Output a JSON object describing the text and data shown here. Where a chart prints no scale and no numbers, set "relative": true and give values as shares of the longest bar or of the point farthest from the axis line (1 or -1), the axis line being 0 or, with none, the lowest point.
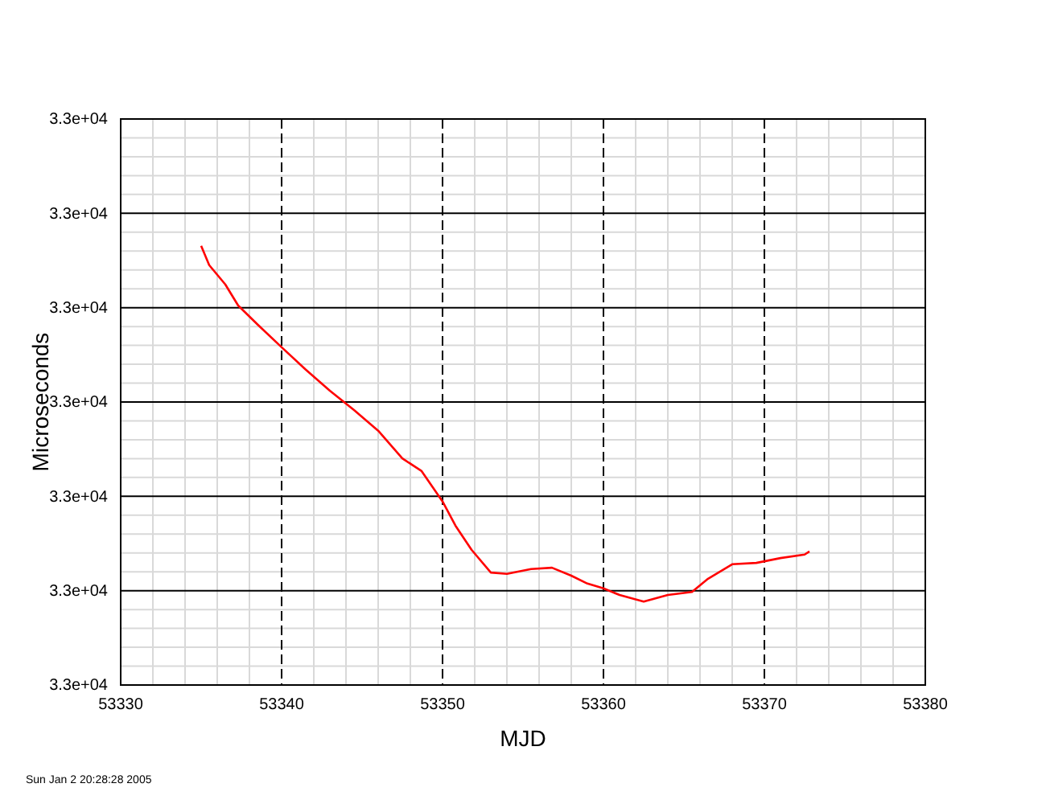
{
  "chart_data": {
    "type": "line",
    "xlabel": "MJD",
    "ylabel": "Microseconds",
    "relative": true,
    "grid": true,
    "marker": "none",
    "line_style": "solid",
    "annotations": [
      "3.3e+04",
      "3.3e+04",
      "3.3e+04",
      "3.3e+04",
      "3.3e+04",
      "3.3e+04",
      "3.3e+04",
      "Sun Jan  2 20:28:28 2005"
    ],
    "xlim": [
      53330,
      53380
    ],
    "xticks": [
      53330,
      {
        "value": 53332,
        "label": null
      },
      {
        "value": 53334,
        "label": null
      },
      {
        "value": 53336,
        "label": null
      },
      {
        "value": 53338,
        "label": null
      },
      53340,
      {
        "value": 53342,
        "label": null
      },
      {
        "value": 53344,
        "label": null
      },
      {
        "value": 53346,
        "label": null
      },
      {
        "value": 53348,
        "label": null
      },
      53350,
      {
        "value": 53352,
        "label": null
      },
      {
        "value": 53354,
        "label": null
      },
      {
        "value": 53356,
        "label": null
      },
      {
        "value": 53358,
        "label": null
      },
      53360,
      {
        "value": 53362,
        "label": null
      },
      {
        "value": 53364,
        "label": null
      },
      {
        "value": 53366,
        "label": null
      },
      {
        "value": 53368,
        "label": null
      },
      53370,
      {
        "value": 53372,
        "label": null
      },
      {
        "value": 53374,
        "label": null
      },
      {
        "value": 53376,
        "label": null
      },
      {
        "value": 53378,
        "label": null
      },
      53380
    ],
    "x": [
      53335,
      53335.5,
      53336.5,
      53337.3,
      53338.5,
      53340,
      53341.5,
      53343,
      53344.5,
      53346,
      53347.5,
      53348.7,
      53350,
      53350.8,
      53351.8,
      53353,
      53354,
      53355.5,
      53356.8,
      53358,
      53359,
      53360,
      53361,
      53362.5,
      53364,
      53365.5,
      53366.5,
      53368,
      53369.5,
      53371,
      53372.5,
      53372.8
    ],
    "series": [
      {
        "color": "#ff0000",
        "values": [
          1.0,
          0.956,
          0.912,
          0.864,
          0.821,
          0.769,
          0.718,
          0.67,
          0.626,
          0.579,
          0.516,
          0.487,
          0.418,
          0.363,
          0.308,
          0.256,
          0.253,
          0.264,
          0.267,
          0.249,
          0.231,
          0.22,
          0.205,
          0.19,
          0.205,
          0.212,
          0.242,
          0.275,
          0.278,
          0.289,
          0.297,
          0.304
        ]
      }
    ]
  }
}
